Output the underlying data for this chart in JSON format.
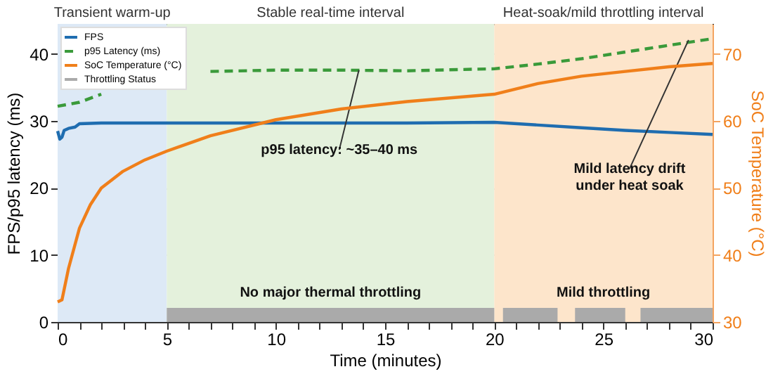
{
  "chart_data": {
    "type": "line",
    "xlabel": "Time (minutes)",
    "ylabel": "FPS/p95 latency (ms)",
    "y2label": "SoC Temperature (°C)",
    "xlim": [
      0,
      30
    ],
    "xticks": [
      0,
      {
        "value": 1,
        "label": null
      },
      {
        "value": 2,
        "label": null
      },
      {
        "value": 3,
        "label": null
      },
      {
        "value": 4,
        "label": null
      },
      5,
      {
        "value": 6,
        "label": null
      },
      {
        "value": 7,
        "label": null
      },
      {
        "value": 8,
        "label": null
      },
      {
        "value": 9,
        "label": null
      },
      10,
      {
        "value": 11,
        "label": null
      },
      {
        "value": 12,
        "label": null
      },
      {
        "value": 13,
        "label": null
      },
      {
        "value": 14,
        "label": null
      },
      15,
      {
        "value": 16,
        "label": null
      },
      {
        "value": 17,
        "label": null
      },
      {
        "value": 18,
        "label": null
      },
      {
        "value": 19,
        "label": null
      },
      20,
      {
        "value": 21,
        "label": null
      },
      {
        "value": 22,
        "label": null
      },
      {
        "value": 23,
        "label": null
      },
      {
        "value": 24,
        "label": null
      },
      25,
      {
        "value": 26,
        "label": null
      },
      {
        "value": 27,
        "label": null
      },
      {
        "value": 28,
        "label": null
      },
      {
        "value": 29,
        "label": null
      },
      30
    ],
    "ylim": [
      0,
      44.5
    ],
    "yticks": [
      0,
      10,
      20,
      30,
      40
    ],
    "y2lim": [
      30,
      74.5
    ],
    "y2ticks": [
      30,
      40,
      50,
      60,
      70
    ],
    "grid": true,
    "legend": "top left",
    "series": [
      {
        "name": "FPS",
        "color": "#1f6db0",
        "line_style": "solid",
        "x": [
          0,
          0.1,
          0.2,
          0.3,
          0.5,
          0.8,
          1,
          2,
          3,
          5,
          8,
          10,
          13,
          16,
          20,
          22,
          24,
          26,
          28,
          30
        ],
        "values": [
          28.5,
          27.3,
          27.6,
          28.6,
          28.9,
          29.1,
          29.6,
          29.7,
          29.7,
          29.7,
          29.7,
          29.7,
          29.7,
          29.7,
          29.8,
          29.4,
          29.0,
          28.6,
          28.3,
          28.0
        ]
      },
      {
        "name": "p95 Latency (ms)",
        "color": "#3a9a3a",
        "line_style": "dashed",
        "x": [
          0,
          1,
          2,
          2.5,
          3,
          4,
          5,
          7,
          10,
          13,
          16,
          20,
          22,
          24,
          26,
          28,
          30
        ],
        "values": [
          32.2,
          32.8,
          34.0,
          null,
          null,
          null,
          null,
          37.4,
          37.6,
          37.6,
          37.5,
          37.8,
          38.5,
          39.3,
          40.3,
          41.3,
          42.3
        ]
      },
      {
        "name": "SoC Temperature (°C)",
        "color": "#f07f1a",
        "line_style": "solid",
        "axis": "y2",
        "x": [
          0,
          0.2,
          0.5,
          1,
          1.5,
          2,
          3,
          4,
          5,
          7,
          10,
          13,
          16,
          20,
          22,
          24,
          26,
          28,
          30
        ],
        "values": [
          33.0,
          33.3,
          38.0,
          44.0,
          47.5,
          50.0,
          52.5,
          54.2,
          55.5,
          57.8,
          60.2,
          61.8,
          62.9,
          64.0,
          65.6,
          66.7,
          67.4,
          68.1,
          68.6
        ]
      },
      {
        "name": "Throttling Status",
        "color": "#aaaaaa",
        "type": "area",
        "x": [
          0,
          5,
          20,
          20.4,
          22.9,
          23.7,
          26,
          26.7,
          30
        ],
        "values": [
          0,
          2.1,
          0,
          2.1,
          0,
          2.1,
          0,
          2.1,
          2.1
        ]
      }
    ],
    "bands": [
      {
        "axis": "x",
        "from": 0,
        "to": 5,
        "label": "Transient warm-up",
        "color": "#dde9f6"
      },
      {
        "axis": "x",
        "from": 5,
        "to": 20,
        "label": "Stable real-time interval",
        "color": "#e4f1dc"
      },
      {
        "axis": "x",
        "from": 20,
        "to": 30,
        "label": "Heat-soak/mild throttling interval",
        "color": "#fde5cb"
      }
    ],
    "annotations": [
      {
        "text": "p95 latency: ~35–40 ms",
        "x": 13.8,
        "y": 37.6
      },
      {
        "text": "Mild latency drift\nunder heat soak",
        "x": 28.9,
        "y": 42.1
      },
      {
        "text": "No major thermal throttling",
        "x": 12.5,
        "y": 2.1
      },
      {
        "text": "Mild throttling",
        "x": 25,
        "y": 2.1
      }
    ]
  }
}
